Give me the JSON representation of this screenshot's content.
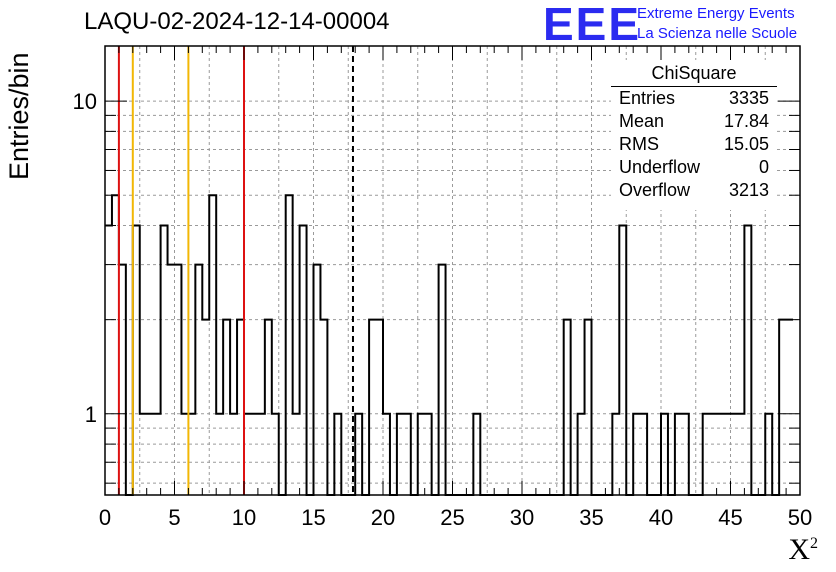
{
  "title": "LAQU-02-2024-12-14-00004",
  "logo": {
    "mark": "EEE",
    "line1": "Extreme Energy Events",
    "line2": "La Scienza nelle Scuole"
  },
  "stats": {
    "title": "ChiSquare",
    "rows": [
      {
        "label": "Entries",
        "value": "3335"
      },
      {
        "label": "Mean",
        "value": "17.84"
      },
      {
        "label": "RMS",
        "value": "15.05"
      },
      {
        "label": "Underflow",
        "value": "0"
      },
      {
        "label": "Overflow",
        "value": "3213"
      }
    ]
  },
  "chart_data": {
    "type": "bar",
    "style": "step-histogram",
    "title": "LAQU-02-2024-12-14-00004",
    "xlabel": "X²",
    "ylabel": "Entries/bin",
    "xlim": [
      0,
      50
    ],
    "ylim": [
      0.55,
      15
    ],
    "yscale": "log",
    "grid": true,
    "bin_width": 0.5,
    "x_ticks": [
      "0",
      "5",
      "10",
      "15",
      "20",
      "25",
      "30",
      "35",
      "40",
      "45",
      "50"
    ],
    "y_ticks": [
      "1",
      "10"
    ],
    "values": [
      4,
      5,
      3,
      0,
      4,
      1,
      1,
      1,
      4,
      3,
      3,
      1,
      1,
      3,
      2,
      5,
      1,
      2,
      1,
      2,
      1,
      1,
      1,
      2,
      1,
      0,
      5,
      1,
      4,
      0,
      3,
      2,
      0,
      1,
      0,
      0,
      1,
      0,
      2,
      2,
      1,
      0,
      1,
      1,
      0,
      1,
      1,
      0,
      3,
      0,
      0,
      0,
      0,
      1,
      0,
      0,
      0,
      0,
      0,
      0,
      0,
      0,
      0,
      0,
      0,
      0,
      2,
      0,
      1,
      2,
      0,
      0,
      0,
      1,
      4,
      0,
      1,
      1,
      0,
      0,
      1,
      0,
      1,
      1,
      0,
      0,
      1,
      1,
      1,
      1,
      1,
      1,
      4,
      0,
      0,
      1,
      0,
      2,
      2
    ],
    "vertical_lines": [
      {
        "x": 1,
        "color": "#dd1111",
        "style": "solid"
      },
      {
        "x": 2,
        "color": "#f2b705",
        "style": "solid"
      },
      {
        "x": 6,
        "color": "#f2b705",
        "style": "solid"
      },
      {
        "x": 10,
        "color": "#dd1111",
        "style": "solid"
      },
      {
        "x": 17.84,
        "color": "#000000",
        "style": "dashed"
      }
    ],
    "colors": {
      "line": "#000000",
      "grid": "#9a9a9a"
    }
  }
}
